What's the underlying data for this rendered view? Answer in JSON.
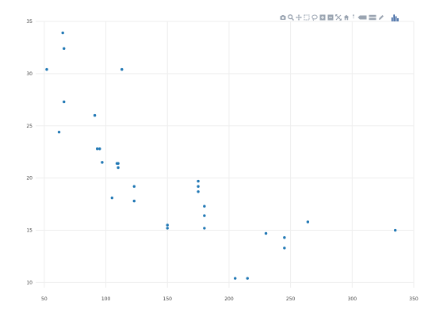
{
  "modebar": {
    "buttons": [
      {
        "icon": "camera-icon"
      },
      {
        "icon": "zoom-icon"
      },
      {
        "icon": "pan-icon"
      },
      {
        "icon": "box-select-icon"
      },
      {
        "icon": "lasso-select-icon"
      },
      {
        "icon": "zoom-in-icon"
      },
      {
        "icon": "zoom-out-icon"
      },
      {
        "icon": "autoscale-icon"
      },
      {
        "icon": "reset-axes-icon"
      },
      {
        "icon": "spike-lines-icon"
      },
      {
        "icon": "hover-closest-icon"
      },
      {
        "icon": "hover-compare-icon"
      },
      {
        "icon": "edit-in-chart-studio-icon"
      },
      {
        "icon": "plotly-logo-icon"
      }
    ]
  },
  "chart_data": {
    "type": "scatter",
    "title": "",
    "xlabel": "",
    "ylabel": "",
    "xlim": [
      43,
      350
    ],
    "ylim": [
      9.5,
      35
    ],
    "x_ticks": [
      50,
      100,
      150,
      200,
      250,
      300,
      350
    ],
    "y_ticks": [
      10,
      15,
      20,
      25,
      30,
      35
    ],
    "grid": true,
    "legend": "none",
    "marker_color": "#1f77b4",
    "series": [
      {
        "points": [
          [
            52,
            30.4
          ],
          [
            62,
            24.4
          ],
          [
            65,
            33.9
          ],
          [
            66,
            32.4
          ],
          [
            66,
            27.3
          ],
          [
            91,
            26.0
          ],
          [
            93,
            22.8
          ],
          [
            95,
            22.8
          ],
          [
            97,
            21.5
          ],
          [
            105,
            18.1
          ],
          [
            109,
            21.4
          ],
          [
            110,
            21.0
          ],
          [
            110,
            21.4
          ],
          [
            113,
            30.4
          ],
          [
            123,
            19.2
          ],
          [
            123,
            17.8
          ],
          [
            150,
            15.5
          ],
          [
            150,
            15.2
          ],
          [
            175,
            19.7
          ],
          [
            175,
            19.2
          ],
          [
            175,
            18.7
          ],
          [
            180,
            17.3
          ],
          [
            180,
            16.4
          ],
          [
            180,
            15.2
          ],
          [
            205,
            10.4
          ],
          [
            215,
            10.4
          ],
          [
            230,
            14.7
          ],
          [
            245,
            14.3
          ],
          [
            245,
            13.3
          ],
          [
            264,
            15.8
          ],
          [
            335,
            15.0
          ]
        ]
      }
    ]
  }
}
